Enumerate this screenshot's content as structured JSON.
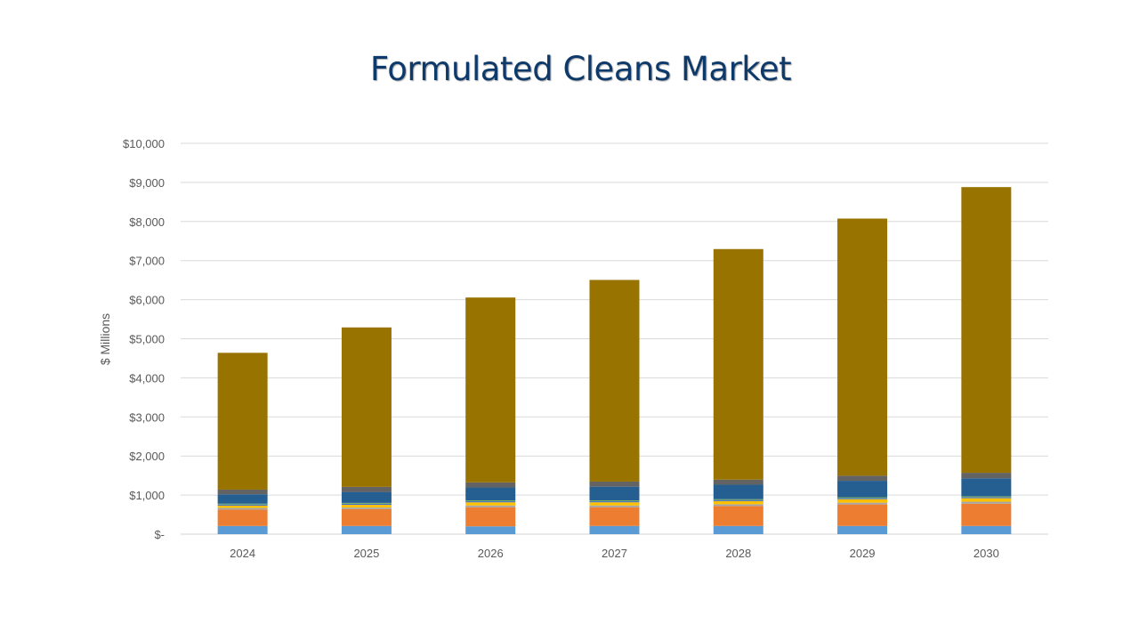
{
  "title": "Formulated Cleans Market",
  "chart_data": {
    "type": "bar",
    "stacked": true,
    "title": "Formulated Cleans Market",
    "xlabel": "",
    "ylabel": "$ Millions",
    "ylim": [
      0,
      10000
    ],
    "yticks": [
      0,
      1000,
      2000,
      3000,
      4000,
      5000,
      6000,
      7000,
      8000,
      9000,
      10000
    ],
    "ytick_labels": [
      "$-",
      "$1,000",
      "$2,000",
      "$3,000",
      "$4,000",
      "$5,000",
      "$6,000",
      "$7,000",
      "$8,000",
      "$9,000",
      "$10,000"
    ],
    "grid": true,
    "legend": "none",
    "categories": [
      "2024",
      "2025",
      "2026",
      "2027",
      "2028",
      "2029",
      "2030"
    ],
    "series": [
      {
        "color": "#5b9bd5",
        "values": [
          210,
          210,
          200,
          210,
          210,
          210,
          210
        ]
      },
      {
        "color": "#ed7d31",
        "values": [
          420,
          430,
          490,
          480,
          510,
          550,
          570
        ]
      },
      {
        "color": "#a5a5a5",
        "values": [
          40,
          40,
          45,
          45,
          45,
          45,
          50
        ]
      },
      {
        "color": "#ffc000",
        "values": [
          60,
          70,
          80,
          80,
          80,
          90,
          90
        ]
      },
      {
        "color": "#4472c4",
        "values": [
          30,
          30,
          30,
          30,
          30,
          30,
          30
        ]
      },
      {
        "color": "#70ad47",
        "values": [
          20,
          20,
          20,
          20,
          20,
          20,
          20
        ]
      },
      {
        "color": "#255e91",
        "values": [
          240,
          280,
          330,
          350,
          370,
          420,
          460
        ]
      },
      {
        "color": "#636363",
        "values": [
          120,
          130,
          130,
          130,
          130,
          130,
          140
        ]
      },
      {
        "color": "#997300",
        "values": [
          3500,
          4080,
          4730,
          5160,
          5900,
          6580,
          7310
        ]
      }
    ]
  }
}
